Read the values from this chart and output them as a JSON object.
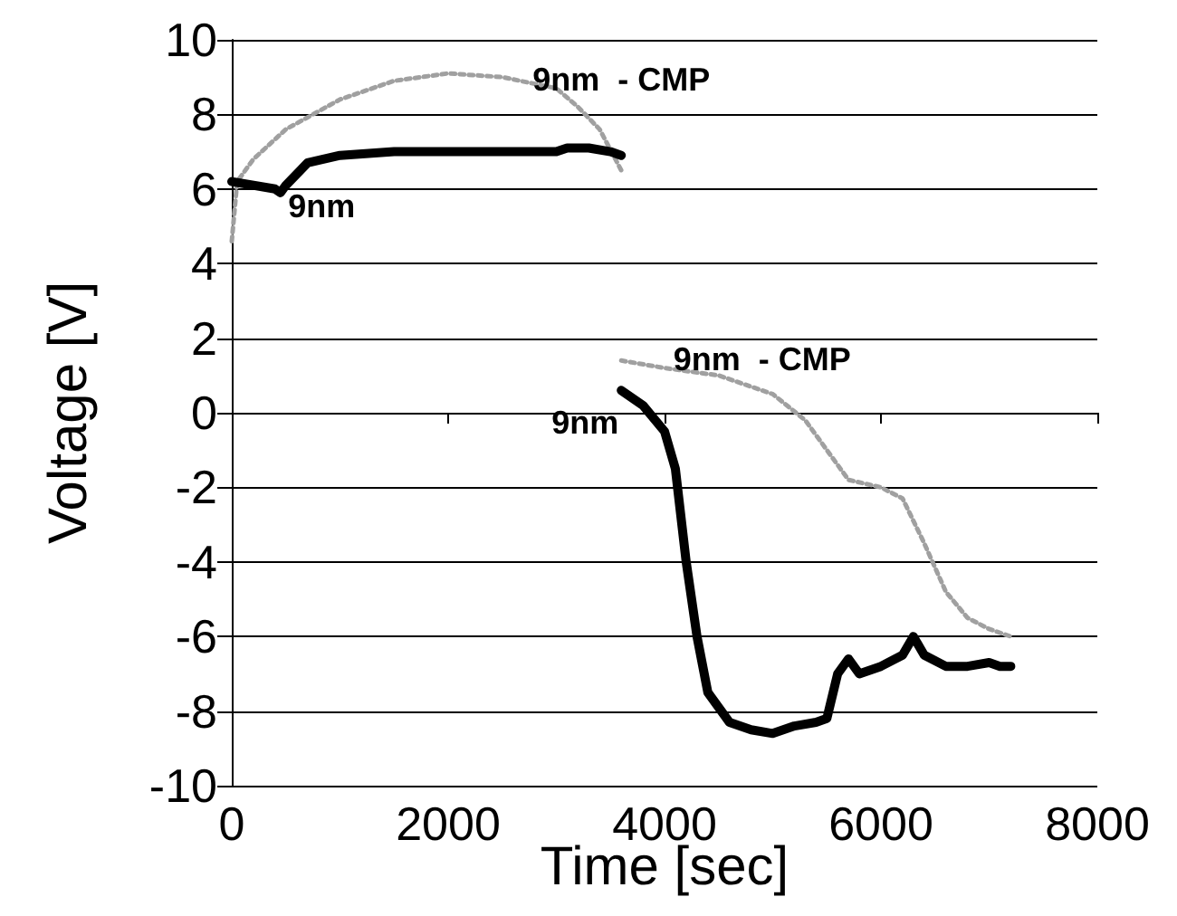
{
  "chart_data": {
    "type": "line",
    "xlabel": "Time [sec]",
    "ylabel": "Voltage [V]",
    "xlim": [
      0,
      8000
    ],
    "xticks": [
      0,
      2000,
      4000,
      6000,
      8000
    ],
    "ylim": [
      -10,
      10
    ],
    "yticks": [
      -10,
      -8,
      -6,
      -4,
      -2,
      0,
      2,
      4,
      6,
      8,
      10
    ],
    "grid": "y",
    "marker": "none",
    "series": [
      {
        "name": "9nm  - CMP",
        "color": "#a0a0a0",
        "line_style": "dotted",
        "x": [
          0,
          50,
          200,
          500,
          1000,
          1500,
          2000,
          2500,
          3000,
          3200,
          3400,
          3600
        ],
        "values": [
          4.6,
          6.2,
          6.8,
          7.6,
          8.4,
          8.9,
          9.1,
          9.0,
          8.7,
          8.2,
          7.6,
          6.5
        ]
      },
      {
        "name": "9nm",
        "color": "#000000",
        "line_style": "solid",
        "x": [
          0,
          400,
          450,
          500,
          700,
          1000,
          1500,
          2000,
          3000,
          3100,
          3300,
          3500,
          3600
        ],
        "values": [
          6.2,
          6.0,
          5.9,
          6.1,
          6.7,
          6.9,
          7.0,
          7.0,
          7.0,
          7.1,
          7.1,
          7.0,
          6.9
        ]
      },
      {
        "name": "9nm  - CMP",
        "color": "#a0a0a0",
        "line_style": "dotted",
        "x": [
          3600,
          4000,
          4500,
          5000,
          5300,
          5500,
          5700,
          6000,
          6200,
          6400,
          6600,
          6800,
          7000,
          7200
        ],
        "values": [
          1.4,
          1.2,
          1.0,
          0.5,
          -0.2,
          -1.0,
          -1.8,
          -2.0,
          -2.3,
          -3.5,
          -4.8,
          -5.5,
          -5.8,
          -6.0
        ]
      },
      {
        "name": "9nm",
        "color": "#000000",
        "line_style": "solid",
        "x": [
          3600,
          3800,
          4000,
          4100,
          4200,
          4300,
          4400,
          4600,
          4800,
          5000,
          5200,
          5400,
          5500,
          5600,
          5700,
          5800,
          6000,
          6200,
          6300,
          6400,
          6600,
          6800,
          7000,
          7100,
          7200
        ],
        "values": [
          0.6,
          0.2,
          -0.5,
          -1.5,
          -4,
          -6,
          -7.5,
          -8.3,
          -8.5,
          -8.6,
          -8.4,
          -8.3,
          -8.2,
          -7.0,
          -6.6,
          -7.0,
          -6.8,
          -6.5,
          -6.0,
          -6.5,
          -6.8,
          -6.8,
          -6.7,
          -6.8,
          -6.8
        ]
      }
    ]
  }
}
